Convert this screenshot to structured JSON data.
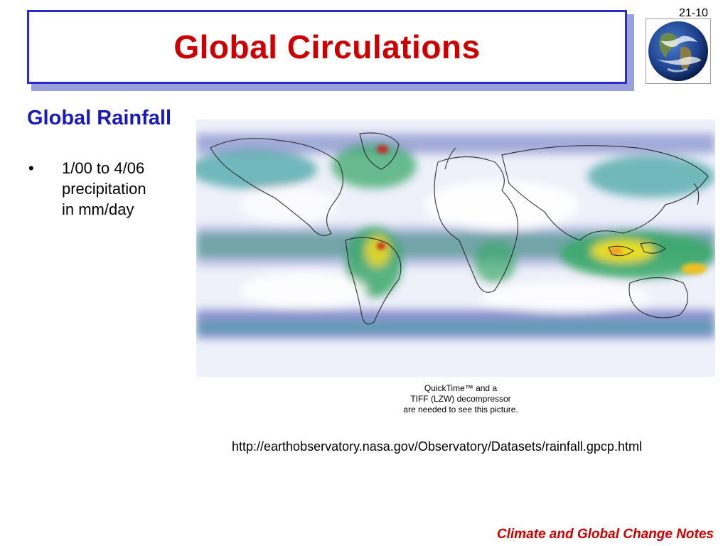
{
  "slide": {
    "title": "Global Circulations",
    "number": "21-10",
    "subtitle": "Global Rainfall",
    "bullet_marker": "•",
    "bullet_lines": [
      "1/00 to 4/06",
      "precipitation",
      "in mm/day"
    ],
    "placeholder_lines": [
      "QuickTime™ and a",
      "TIFF (LZW) decompressor",
      "are needed to see this picture."
    ],
    "url": "http://earthobservatory.nasa.gov/Observatory/Datasets/rainfall.gpcp.html",
    "footer": "Climate and Global Change Notes"
  },
  "images": {
    "globe": "earth-globe-image",
    "map": "global-rainfall-map-image"
  },
  "colors": {
    "title": "#cc0000",
    "title_border": "#2b2bc8",
    "subtitle": "#1a1ab8",
    "footer": "#cc0000",
    "rain_low": "#7a86c8",
    "rain_mid": "#3aa86a",
    "rain_high": "#f0e020",
    "rain_peak": "#cc2020"
  }
}
